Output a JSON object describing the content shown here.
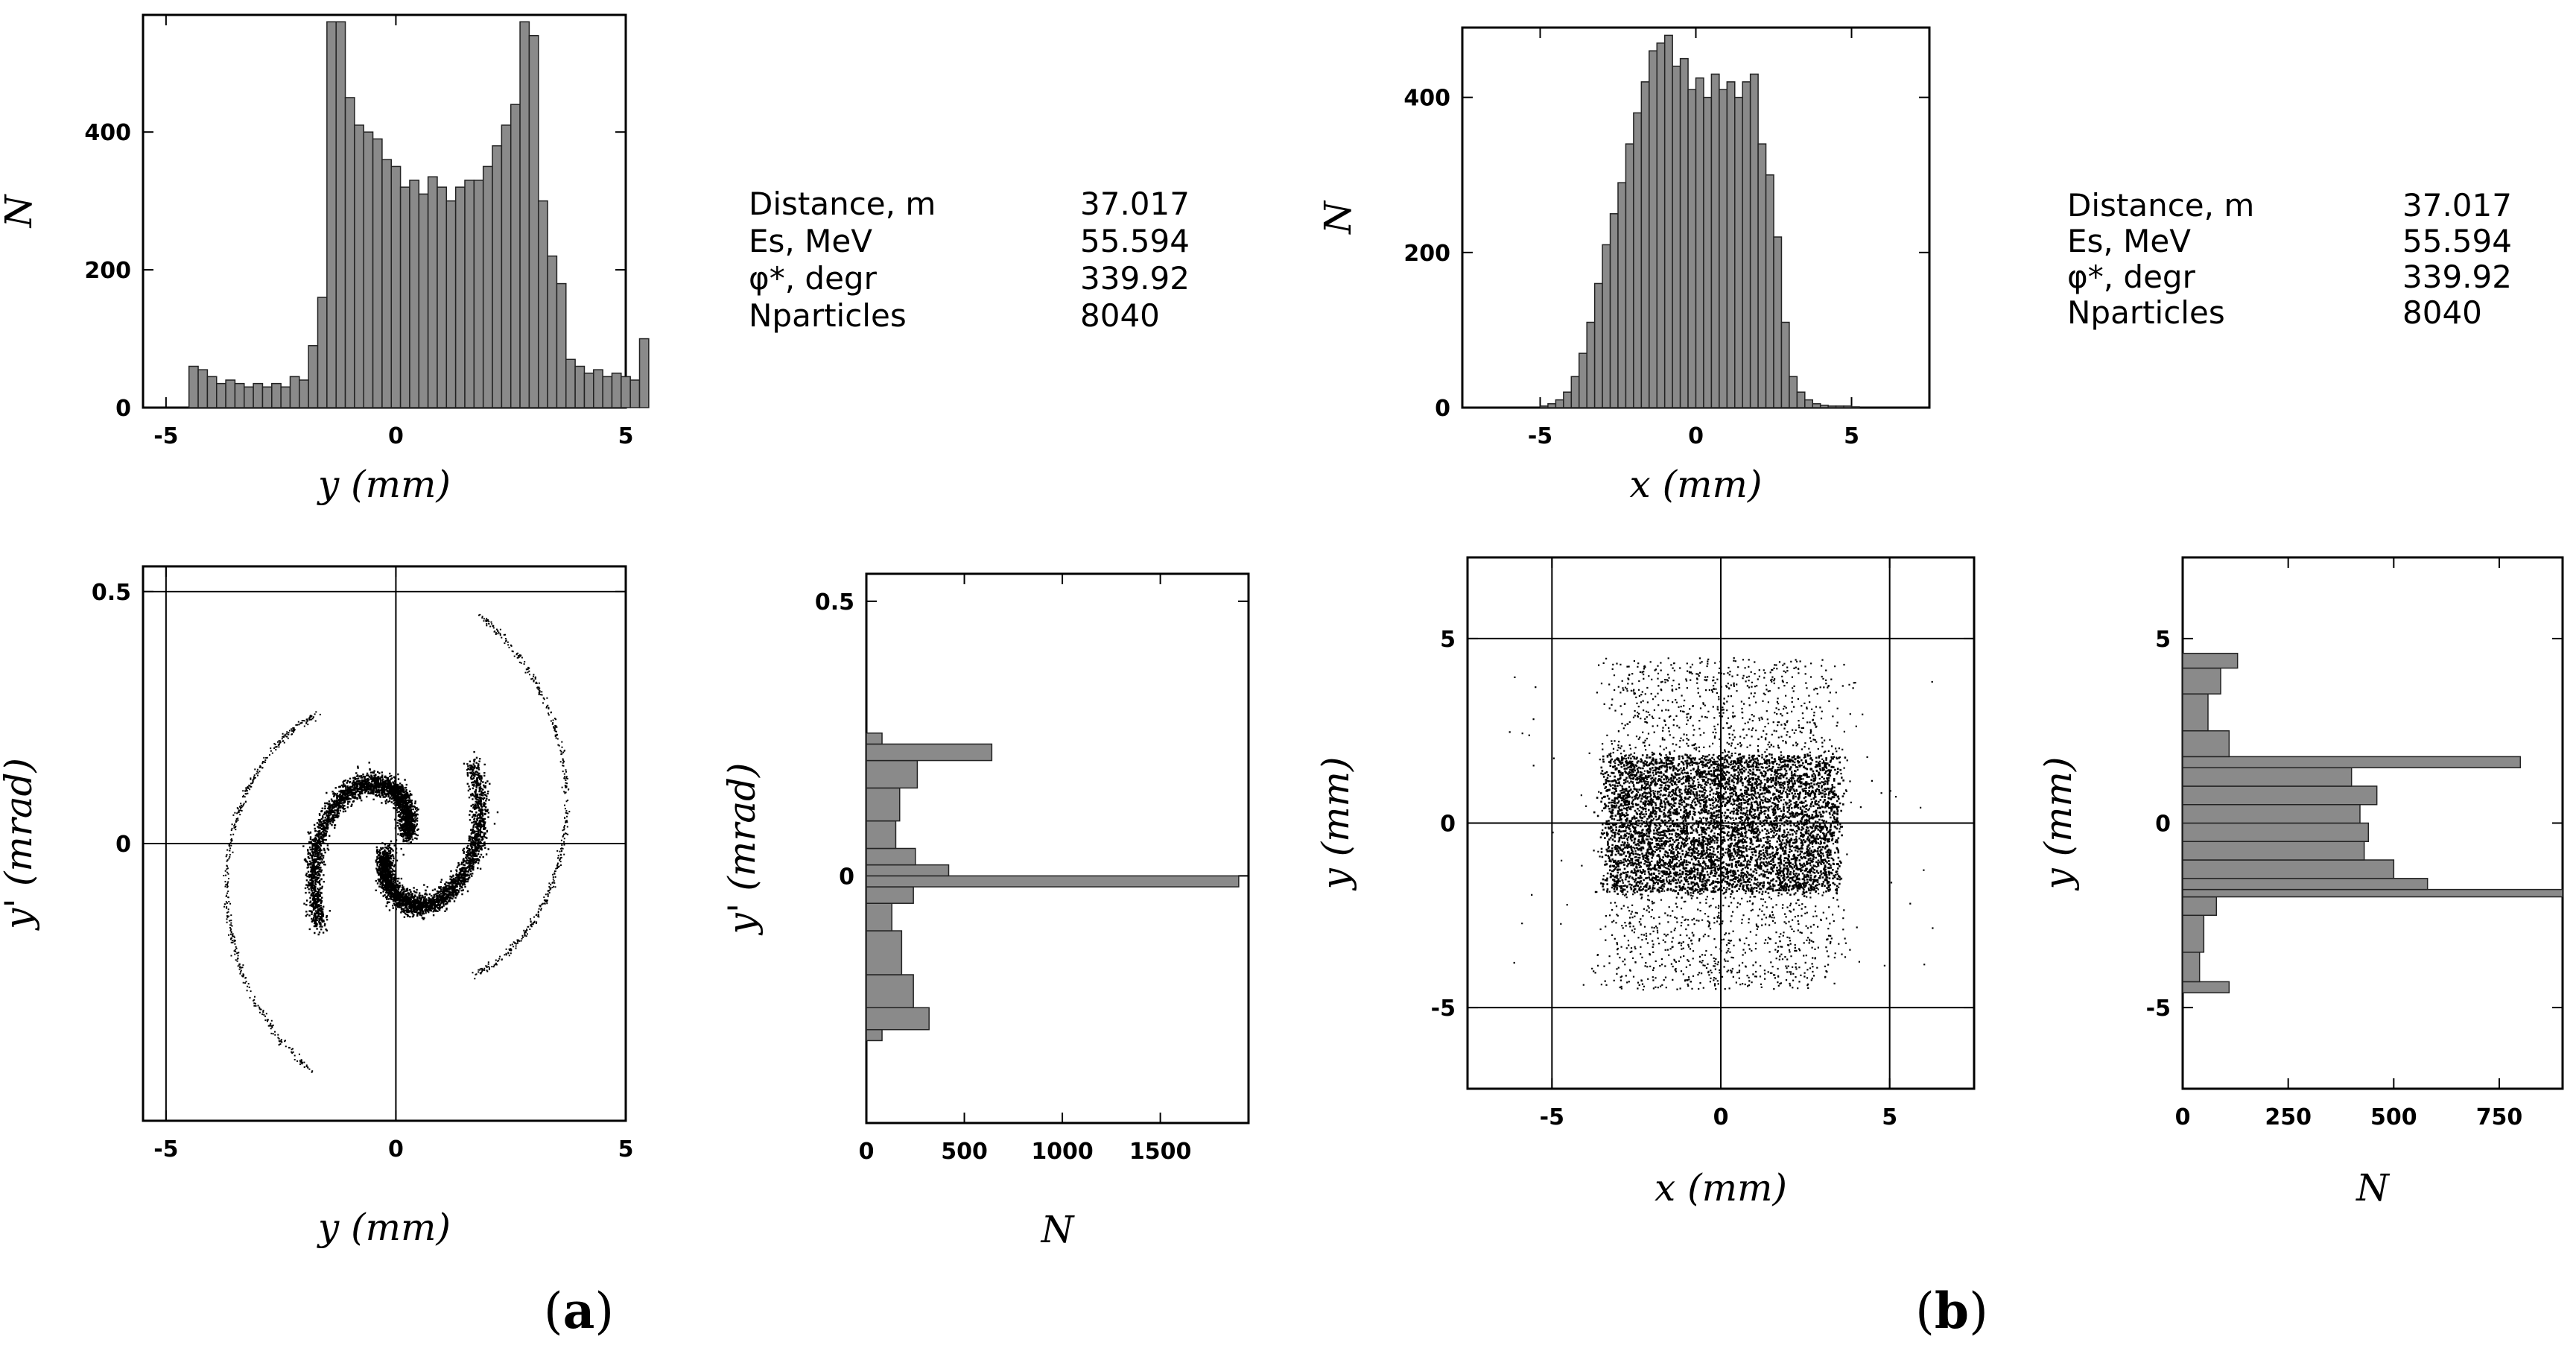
{
  "panels": {
    "a": {
      "label_open": "(",
      "label_letter": "a",
      "label_close": ")"
    },
    "b": {
      "label_open": "(",
      "label_letter": "b",
      "label_close": ")"
    }
  },
  "info_a": {
    "rows": [
      {
        "key": "Distance, m",
        "value": "37.017"
      },
      {
        "key": "Es, MeV",
        "value": "55.594"
      },
      {
        "key": "φ*, degr",
        "value": "339.92"
      },
      {
        "key": "Nparticles",
        "value": "8040"
      }
    ]
  },
  "info_b": {
    "rows": [
      {
        "key": "Distance, m",
        "value": "37.017"
      },
      {
        "key": "Es, MeV",
        "value": "55.594"
      },
      {
        "key": "φ*, degr",
        "value": "339.92"
      },
      {
        "key": "Nparticles",
        "value": "8040"
      }
    ]
  },
  "chart_data": [
    {
      "id": "a_hist_y",
      "type": "bar",
      "xlabel": "y (mm)",
      "ylabel": "N",
      "xlim": [
        -5.5,
        5
      ],
      "ylim": [
        0,
        570
      ],
      "xticks": [
        -5,
        0,
        5
      ],
      "yticks": [
        0,
        200,
        400
      ],
      "bin_start": -4.5,
      "bin_width": 0.2,
      "values": [
        60,
        55,
        45,
        35,
        40,
        35,
        30,
        35,
        30,
        35,
        30,
        45,
        40,
        90,
        160,
        560,
        560,
        450,
        410,
        400,
        390,
        360,
        350,
        320,
        330,
        310,
        335,
        320,
        300,
        320,
        330,
        330,
        350,
        380,
        410,
        440,
        560,
        540,
        300,
        220,
        180,
        70,
        60,
        50,
        55,
        45,
        50,
        45,
        40,
        100
      ],
      "grid": false
    },
    {
      "id": "a_phase_y",
      "type": "scatter",
      "xlabel": "y (mm)",
      "ylabel": "y' (mrad)",
      "xlim": [
        -5.5,
        5
      ],
      "ylim": [
        -0.55,
        0.55
      ],
      "xticks": [
        -5,
        0,
        5
      ],
      "yticks": [
        0,
        0.5
      ],
      "grid_lines_x": [
        -5,
        0,
        5
      ],
      "grid_lines_y": [
        0,
        0.5
      ],
      "pattern": "double spiral (S-shape)",
      "points": 8040
    },
    {
      "id": "a_hist_yprime",
      "type": "bar",
      "orientation": "horizontal",
      "xlabel": "N",
      "ylabel": "y' (mrad)",
      "xlim": [
        0,
        1950
      ],
      "ylim": [
        -0.45,
        0.55
      ],
      "xticks": [
        0,
        500,
        1000,
        1500
      ],
      "yticks": [
        0,
        0.5
      ],
      "bins": [
        {
          "from": -0.3,
          "to": -0.28,
          "value": 80
        },
        {
          "from": -0.28,
          "to": -0.24,
          "value": 320
        },
        {
          "from": -0.24,
          "to": -0.18,
          "value": 240
        },
        {
          "from": -0.18,
          "to": -0.1,
          "value": 180
        },
        {
          "from": -0.1,
          "to": -0.05,
          "value": 130
        },
        {
          "from": -0.05,
          "to": -0.02,
          "value": 240
        },
        {
          "from": -0.02,
          "to": 0.0,
          "value": 1900
        },
        {
          "from": 0.0,
          "to": 0.02,
          "value": 420
        },
        {
          "from": 0.02,
          "to": 0.05,
          "value": 250
        },
        {
          "from": 0.05,
          "to": 0.1,
          "value": 150
        },
        {
          "from": 0.1,
          "to": 0.16,
          "value": 170
        },
        {
          "from": 0.16,
          "to": 0.21,
          "value": 260
        },
        {
          "from": 0.21,
          "to": 0.24,
          "value": 640
        },
        {
          "from": 0.24,
          "to": 0.26,
          "value": 80
        }
      ],
      "grid": false
    },
    {
      "id": "b_hist_x",
      "type": "bar",
      "xlabel": "x (mm)",
      "ylabel": "N",
      "xlim": [
        -7.5,
        7.5
      ],
      "ylim": [
        0,
        490
      ],
      "xticks": [
        -5,
        0,
        5
      ],
      "yticks": [
        0,
        200,
        400
      ],
      "bin_start": -5,
      "bin_width": 0.25,
      "values": [
        2,
        5,
        10,
        20,
        40,
        70,
        110,
        160,
        210,
        250,
        290,
        340,
        380,
        420,
        460,
        470,
        480,
        440,
        450,
        410,
        425,
        400,
        430,
        410,
        420,
        400,
        420,
        430,
        340,
        300,
        220,
        110,
        40,
        20,
        10,
        5,
        3,
        2,
        2,
        2,
        1
      ],
      "grid": false
    },
    {
      "id": "b_scatter_xy",
      "type": "scatter",
      "xlabel": "x (mm)",
      "ylabel": "y (mm)",
      "xlim": [
        -7.5,
        7.5
      ],
      "ylim": [
        -7.2,
        7.2
      ],
      "xticks": [
        -5,
        0,
        5
      ],
      "yticks": [
        -5,
        0,
        5
      ],
      "grid_lines_x": [
        -5,
        0,
        5
      ],
      "grid_lines_y": [
        -5,
        0,
        5
      ],
      "pattern": "dense core |y|<1.8, |x|<3; sparse halo |y|<4.5",
      "points": 8040
    },
    {
      "id": "b_hist_y",
      "type": "bar",
      "orientation": "horizontal",
      "xlabel": "N",
      "ylabel": "y (mm)",
      "xlim": [
        0,
        900
      ],
      "ylim": [
        -7.2,
        7.2
      ],
      "xticks": [
        0,
        250,
        500,
        750
      ],
      "yticks": [
        -5,
        0,
        5
      ],
      "bins": [
        {
          "from": -4.6,
          "to": -4.3,
          "value": 110
        },
        {
          "from": -4.3,
          "to": -3.5,
          "value": 40
        },
        {
          "from": -3.5,
          "to": -2.5,
          "value": 50
        },
        {
          "from": -2.5,
          "to": -2.0,
          "value": 80
        },
        {
          "from": -2.0,
          "to": -1.8,
          "value": 900
        },
        {
          "from": -1.8,
          "to": -1.5,
          "value": 580
        },
        {
          "from": -1.5,
          "to": -1.0,
          "value": 500
        },
        {
          "from": -1.0,
          "to": -0.5,
          "value": 430
        },
        {
          "from": -0.5,
          "to": 0.0,
          "value": 440
        },
        {
          "from": 0.0,
          "to": 0.5,
          "value": 420
        },
        {
          "from": 0.5,
          "to": 1.0,
          "value": 460
        },
        {
          "from": 1.0,
          "to": 1.5,
          "value": 400
        },
        {
          "from": 1.5,
          "to": 1.8,
          "value": 800
        },
        {
          "from": 1.8,
          "to": 2.5,
          "value": 110
        },
        {
          "from": 2.5,
          "to": 3.5,
          "value": 60
        },
        {
          "from": 3.5,
          "to": 4.2,
          "value": 90
        },
        {
          "from": 4.2,
          "to": 4.6,
          "value": 130
        }
      ],
      "grid": false
    }
  ]
}
